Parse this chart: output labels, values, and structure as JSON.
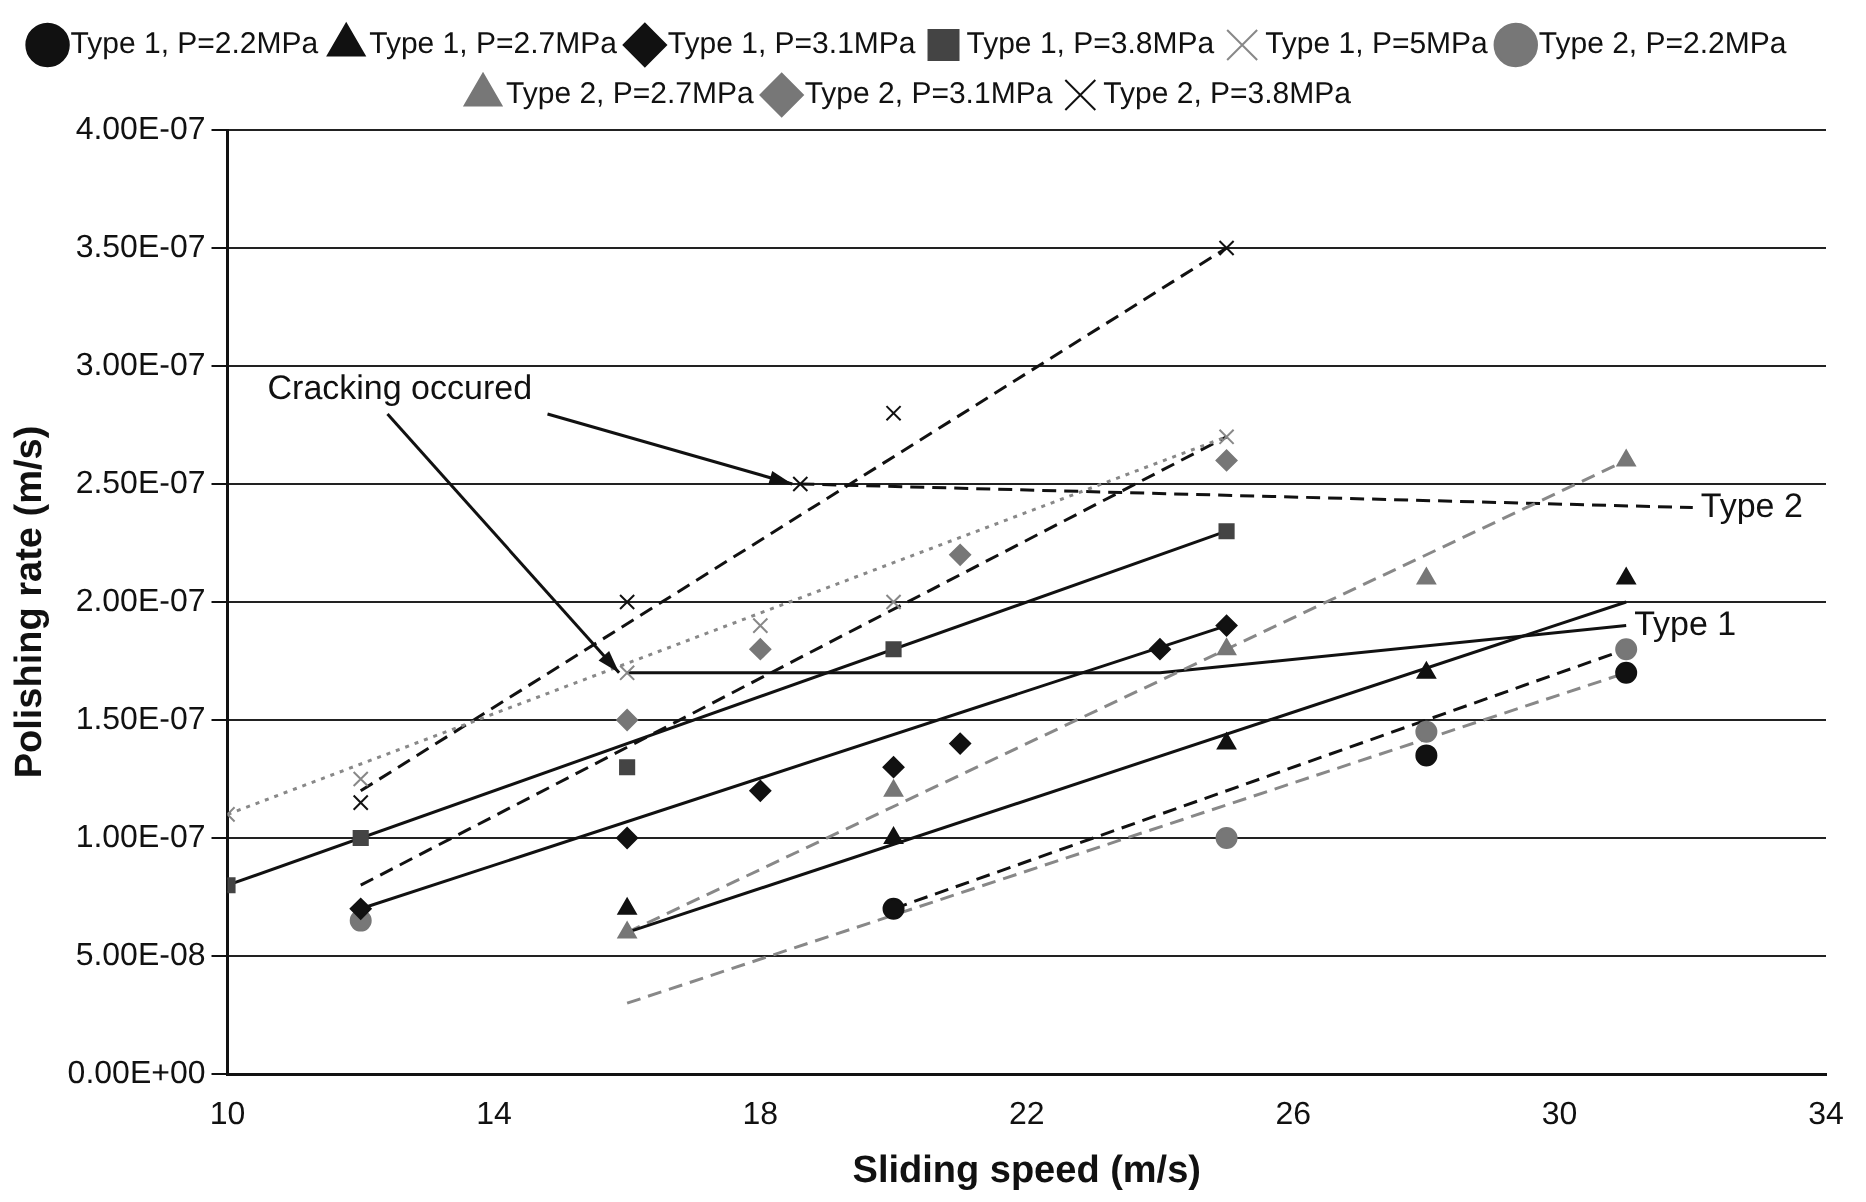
{
  "chart_data": {
    "type": "scatter",
    "xlabel": "Sliding speed (m/s)",
    "ylabel": "Polishing rate (m/s)",
    "xlim": [
      10,
      34
    ],
    "xticks": [
      10,
      14,
      18,
      22,
      26,
      30,
      34
    ],
    "ylim": [
      0,
      4e-07
    ],
    "yticks": [
      {
        "value": 0,
        "label": "0.00E+00"
      },
      {
        "value": 5e-08,
        "label": "5.00E-08"
      },
      {
        "value": 1e-07,
        "label": "1.00E-07"
      },
      {
        "value": 1.5e-07,
        "label": "1.50E-07"
      },
      {
        "value": 2e-07,
        "label": "2.00E-07"
      },
      {
        "value": 2.5e-07,
        "label": "2.50E-07"
      },
      {
        "value": 3e-07,
        "label": "3.00E-07"
      },
      {
        "value": 3.5e-07,
        "label": "3.50E-07"
      },
      {
        "value": 4e-07,
        "label": "4.00E-07"
      }
    ],
    "grid": "y",
    "legend": "top",
    "annotations": [
      {
        "text": "Cracking occured",
        "x": 18.6,
        "y": 2.5e-07
      },
      {
        "text": "Type 2",
        "x": 32,
        "y": 2.4e-07
      },
      {
        "text": "Type 1",
        "x": 31,
        "y": 1.9e-07
      }
    ],
    "series": [
      {
        "name": "Type 1, P=2.2MPa",
        "type": "scatter",
        "marker": "circle",
        "color": "#111111",
        "x": [
          20,
          28,
          31
        ],
        "values": [
          7e-08,
          1.35e-07,
          1.7e-07
        ]
      },
      {
        "name": "Type 1, P=2.7MPa",
        "type": "scatter",
        "marker": "triangle",
        "color": "#111111",
        "x": [
          16,
          20,
          25,
          28,
          31
        ],
        "values": [
          7e-08,
          1e-07,
          1.4e-07,
          1.7e-07,
          2.1e-07
        ]
      },
      {
        "name": "Type 1, P=3.1MPa",
        "type": "scatter",
        "marker": "diamond",
        "color": "#111111",
        "x": [
          12,
          16,
          18,
          20,
          21,
          24,
          25
        ],
        "values": [
          7e-08,
          1e-07,
          1.2e-07,
          1.3e-07,
          1.4e-07,
          1.8e-07,
          1.9e-07
        ]
      },
      {
        "name": "Type 1, P=3.8MPa",
        "type": "scatter",
        "marker": "square",
        "color": "#444444",
        "x": [
          10,
          12,
          16,
          20,
          25
        ],
        "values": [
          8e-08,
          1e-07,
          1.3e-07,
          1.8e-07,
          2.3e-07
        ]
      },
      {
        "name": "Type 1, P=5MPa",
        "type": "scatter",
        "marker": "cross",
        "color": "#888888",
        "x": [
          10,
          12,
          16,
          18,
          20,
          25
        ],
        "values": [
          1.1e-07,
          1.25e-07,
          1.7e-07,
          1.9e-07,
          2e-07,
          2.7e-07
        ]
      },
      {
        "name": "Type 2, P=2.2MPa",
        "type": "scatter",
        "marker": "circle",
        "color": "#777777",
        "x": [
          12,
          25,
          28,
          31
        ],
        "values": [
          6.5e-08,
          1e-07,
          1.45e-07,
          1.8e-07
        ]
      },
      {
        "name": "Type 2, P=2.7MPa",
        "type": "scatter",
        "marker": "triangle",
        "color": "#777777",
        "x": [
          16,
          20,
          25,
          28,
          31
        ],
        "values": [
          6e-08,
          1.2e-07,
          1.8e-07,
          2.1e-07,
          2.6e-07
        ]
      },
      {
        "name": "Type 2, P=3.1MPa",
        "type": "scatter",
        "marker": "diamond",
        "color": "#777777",
        "x": [
          16,
          18,
          21,
          25
        ],
        "values": [
          1.5e-07,
          1.8e-07,
          2.2e-07,
          2.6e-07
        ]
      },
      {
        "name": "Type 2, P=3.8MPa",
        "type": "scatter",
        "marker": "cross",
        "color": "#111111",
        "x": [
          12,
          16,
          18.6,
          20,
          25
        ],
        "values": [
          1.15e-07,
          2e-07,
          2.5e-07,
          2.8e-07,
          3.5e-07
        ]
      },
      {
        "type": "line",
        "line_style": "solid",
        "color": "#111111",
        "x": [
          12,
          25
        ],
        "values": [
          7e-08,
          1.9e-07
        ]
      },
      {
        "type": "line",
        "line_style": "solid",
        "color": "#111111",
        "x": [
          10,
          25
        ],
        "values": [
          8e-08,
          2.3e-07
        ]
      },
      {
        "type": "line",
        "line_style": "dotted",
        "color": "#888888",
        "x": [
          10,
          25
        ],
        "values": [
          1.1e-07,
          2.7e-07
        ]
      },
      {
        "type": "line",
        "line_style": "solid",
        "color": "#111111",
        "x": [
          16,
          31
        ],
        "values": [
          6e-08,
          2e-07
        ]
      },
      {
        "type": "line",
        "line_style": "dashed",
        "color": "#888888",
        "x": [
          16,
          31
        ],
        "values": [
          3e-08,
          1.7e-07
        ]
      },
      {
        "type": "line",
        "line_style": "dashed",
        "color": "#111111",
        "x": [
          12,
          25
        ],
        "values": [
          8e-08,
          2.7e-07
        ]
      },
      {
        "type": "line",
        "line_style": "dashed",
        "color": "#888888",
        "x": [
          16,
          31
        ],
        "values": [
          6e-08,
          2.6e-07
        ]
      },
      {
        "type": "line",
        "line_style": "dashed",
        "color": "#111111",
        "x": [
          20,
          31
        ],
        "values": [
          7e-08,
          1.8e-07
        ]
      },
      {
        "type": "line",
        "line_style": "dashed",
        "color": "#111111",
        "x": [
          12,
          25
        ],
        "values": [
          1.2e-07,
          3.5e-07
        ]
      },
      {
        "type": "line",
        "line_style": "solid",
        "color": "#111111",
        "x": [
          16,
          24,
          31
        ],
        "values": [
          1.7e-07,
          1.7e-07,
          1.9e-07
        ]
      },
      {
        "type": "line",
        "line_style": "dashed",
        "color": "#111111",
        "x": [
          18.6,
          32
        ],
        "values": [
          2.5e-07,
          2.4e-07
        ]
      }
    ]
  }
}
